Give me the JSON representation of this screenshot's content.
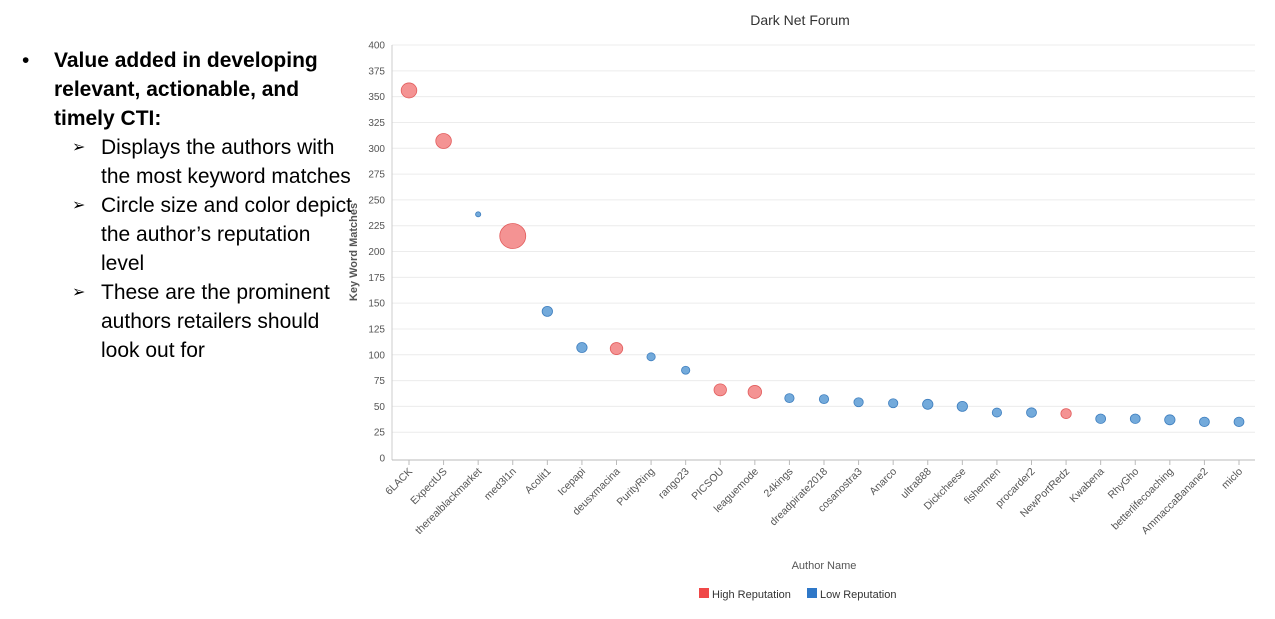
{
  "slide": {
    "bullet": "Value added in developing relevant, actionable, and timely CTI:",
    "sub_bullets": [
      "Displays the authors with the most keyword matches",
      "Circle size and color depict the author’s reputation level",
      "These are the prominent authors retailers should look out for"
    ]
  },
  "colors": {
    "high": "#f28080",
    "high_stroke": "#e25c5c",
    "low": "#5b9bd5",
    "low_stroke": "#3f7fbf",
    "legend_high": "#f04848",
    "legend_low": "#2f78c8"
  },
  "chart_data": {
    "type": "scatter",
    "title": "Dark Net Forum",
    "xlabel": "Author Name",
    "ylabel": "Key Word Matches",
    "ylim": [
      0,
      400
    ],
    "yticks": [
      0,
      25,
      50,
      75,
      100,
      125,
      150,
      175,
      200,
      225,
      250,
      275,
      300,
      325,
      350,
      375,
      400
    ],
    "grid": true,
    "legend_position": "bottom",
    "series": [
      {
        "name": "High Reputation",
        "key": "high"
      },
      {
        "name": "Low Reputation",
        "key": "low"
      }
    ],
    "points": [
      {
        "author": "6LACK",
        "matches": 356,
        "reputation": "high",
        "size": 3
      },
      {
        "author": "ExpectUS",
        "matches": 307,
        "reputation": "high",
        "size": 3
      },
      {
        "author": "therealblackmarket",
        "matches": 236,
        "reputation": "low",
        "size": 1
      },
      {
        "author": "med3l1n",
        "matches": 215,
        "reputation": "high",
        "size": 5
      },
      {
        "author": "Acolit1",
        "matches": 142,
        "reputation": "low",
        "size": 2
      },
      {
        "author": "Icepapi",
        "matches": 107,
        "reputation": "low",
        "size": 2
      },
      {
        "author": "deusxmacina",
        "matches": 106,
        "reputation": "high",
        "size": 2.4
      },
      {
        "author": "PurityRing",
        "matches": 98,
        "reputation": "low",
        "size": 1.6
      },
      {
        "author": "rango23",
        "matches": 85,
        "reputation": "low",
        "size": 1.6
      },
      {
        "author": "PICSOU",
        "matches": 66,
        "reputation": "high",
        "size": 2.4
      },
      {
        "author": "leaguemode",
        "matches": 64,
        "reputation": "high",
        "size": 2.6
      },
      {
        "author": "24kings",
        "matches": 58,
        "reputation": "low",
        "size": 1.8
      },
      {
        "author": "dreadpirate2018",
        "matches": 57,
        "reputation": "low",
        "size": 1.8
      },
      {
        "author": "cosanostra3",
        "matches": 54,
        "reputation": "low",
        "size": 1.8
      },
      {
        "author": "Anarco",
        "matches": 53,
        "reputation": "low",
        "size": 1.8
      },
      {
        "author": "ultra888",
        "matches": 52,
        "reputation": "low",
        "size": 2
      },
      {
        "author": "Dickcheese",
        "matches": 50,
        "reputation": "low",
        "size": 2
      },
      {
        "author": "fishermen",
        "matches": 44,
        "reputation": "low",
        "size": 1.8
      },
      {
        "author": "procarder2",
        "matches": 44,
        "reputation": "low",
        "size": 1.9
      },
      {
        "author": "NewPortRedz",
        "matches": 43,
        "reputation": "high",
        "size": 2
      },
      {
        "author": "Kwabena",
        "matches": 38,
        "reputation": "low",
        "size": 1.9
      },
      {
        "author": "RhyGho",
        "matches": 38,
        "reputation": "low",
        "size": 1.9
      },
      {
        "author": "betterlifecoaching",
        "matches": 37,
        "reputation": "low",
        "size": 2
      },
      {
        "author": "AmmaccaBanane2",
        "matches": 35,
        "reputation": "low",
        "size": 1.9
      },
      {
        "author": "miclo",
        "matches": 35,
        "reputation": "low",
        "size": 1.9
      }
    ]
  }
}
